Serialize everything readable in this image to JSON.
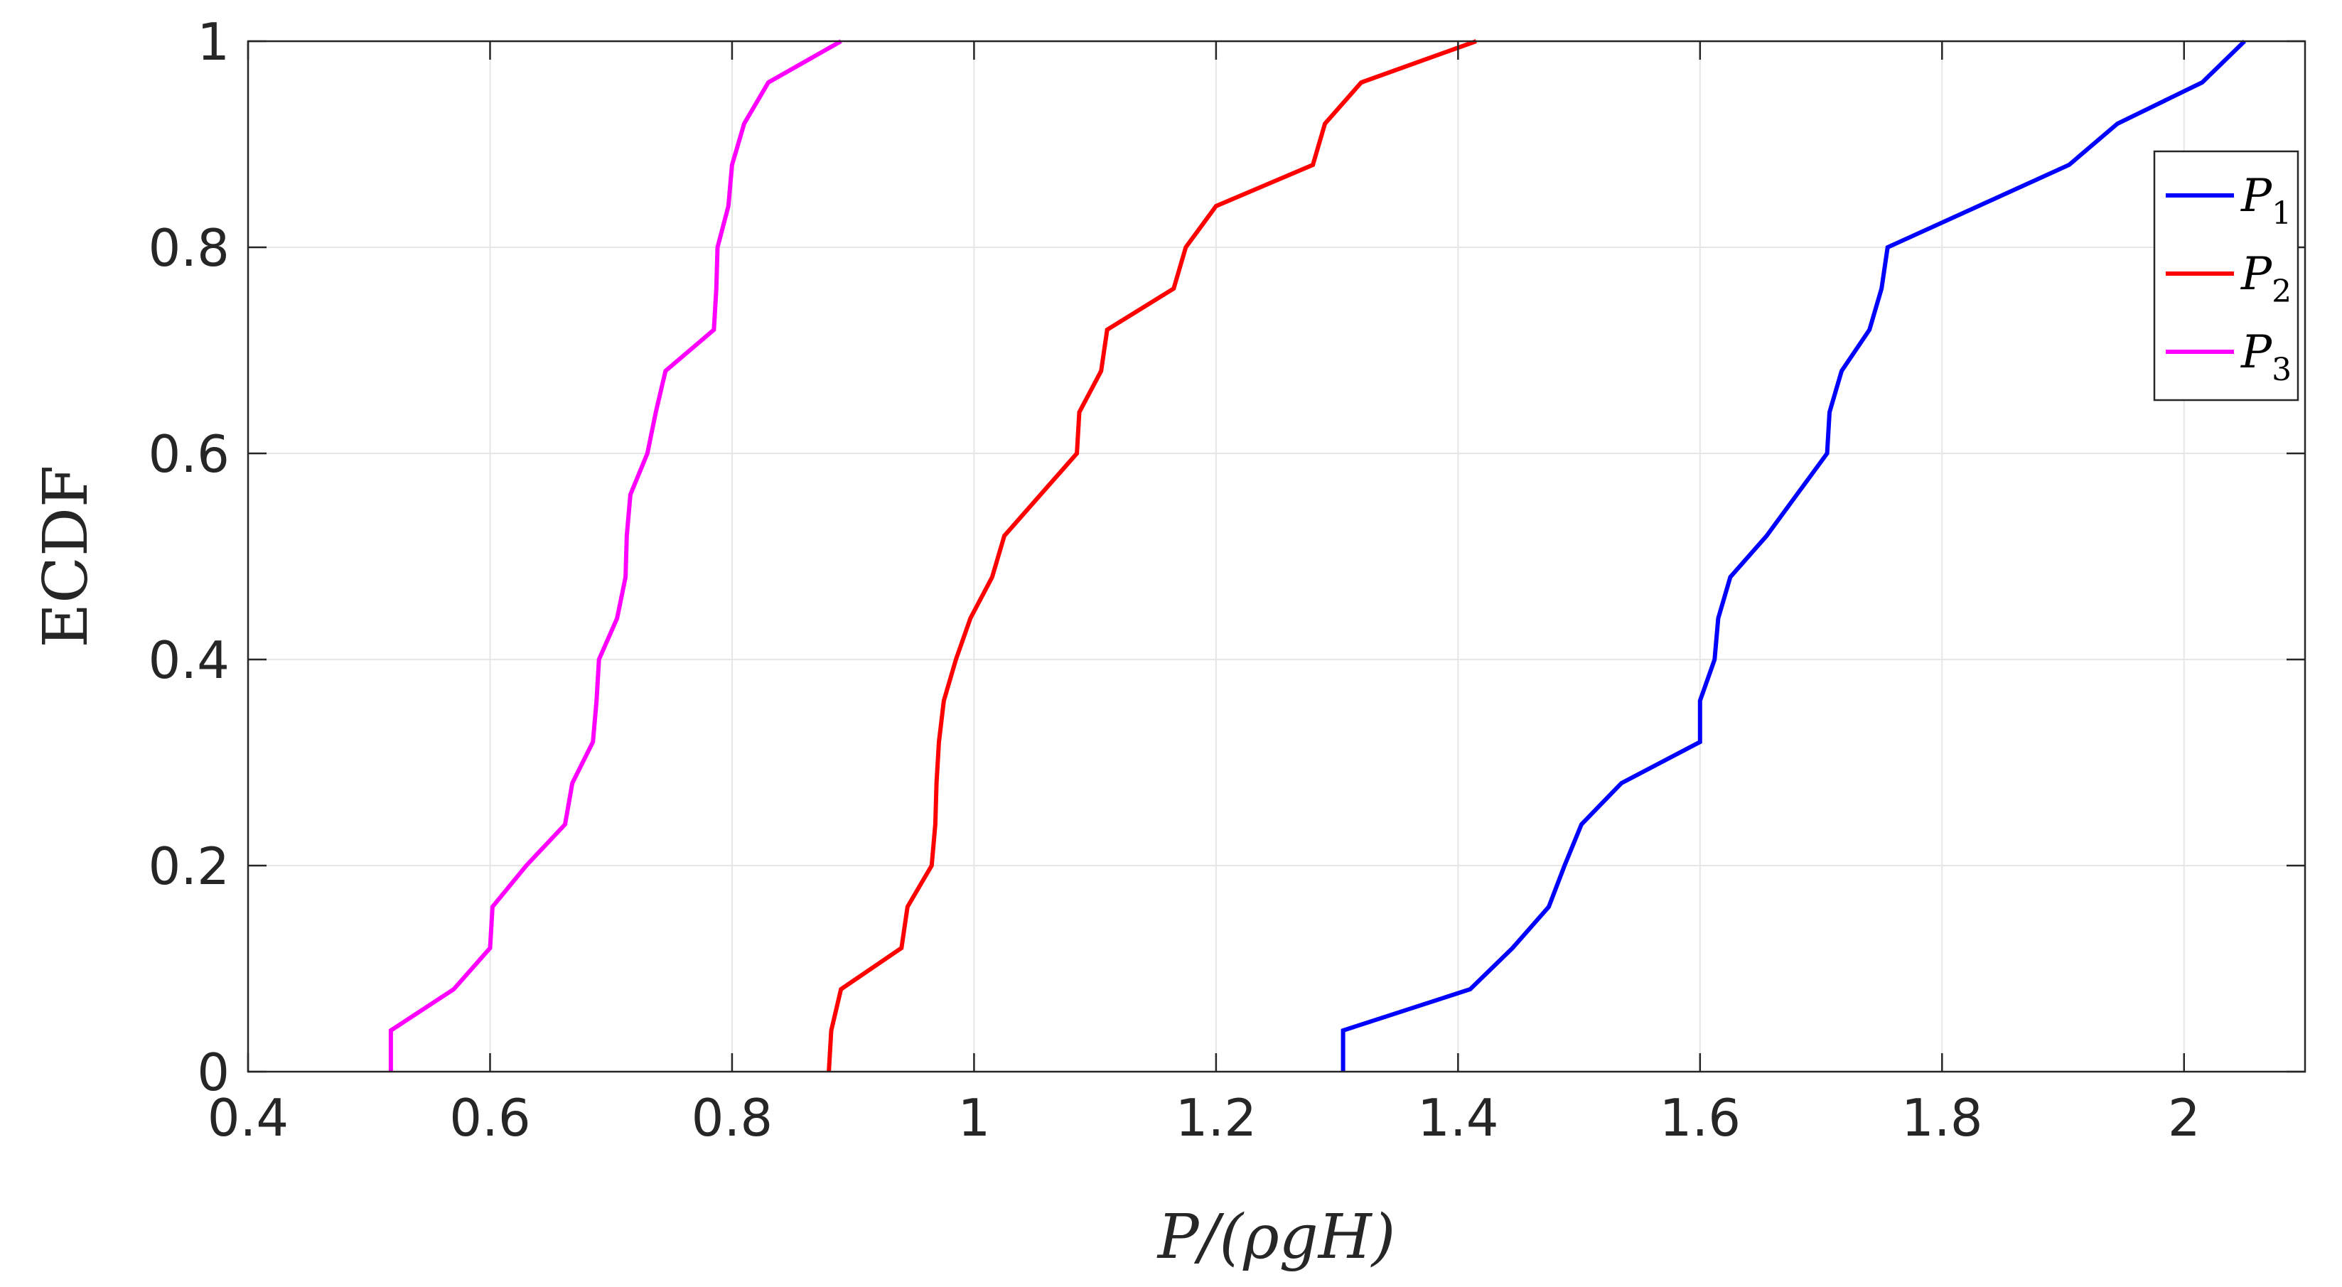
{
  "chart_data": {
    "type": "line",
    "xlabel": "P/(ρgH)",
    "ylabel": "ECDF",
    "xlim": [
      0.4,
      2.1
    ],
    "ylim": [
      0,
      1
    ],
    "x_ticks": [
      "0.4",
      "0.6",
      "0.8",
      "1",
      "1.2",
      "1.4",
      "1.6",
      "1.8",
      "2"
    ],
    "y_ticks": [
      "0",
      "0.2",
      "0.4",
      "0.6",
      "0.8",
      "1"
    ],
    "grid": true,
    "legend_position": "top-right",
    "series": [
      {
        "name": "P1",
        "name_base": "P",
        "name_sub": "1",
        "color": "#0000ff",
        "points": [
          [
            1.305,
            0.0
          ],
          [
            1.305,
            0.04
          ],
          [
            1.41,
            0.08
          ],
          [
            1.445,
            0.12
          ],
          [
            1.475,
            0.16
          ],
          [
            1.488,
            0.2
          ],
          [
            1.502,
            0.24
          ],
          [
            1.535,
            0.28
          ],
          [
            1.6,
            0.32
          ],
          [
            1.6,
            0.36
          ],
          [
            1.612,
            0.4
          ],
          [
            1.615,
            0.44
          ],
          [
            1.625,
            0.48
          ],
          [
            1.655,
            0.52
          ],
          [
            1.68,
            0.56
          ],
          [
            1.705,
            0.6
          ],
          [
            1.707,
            0.64
          ],
          [
            1.717,
            0.68
          ],
          [
            1.74,
            0.72
          ],
          [
            1.75,
            0.76
          ],
          [
            1.755,
            0.8
          ],
          [
            1.83,
            0.84
          ],
          [
            1.905,
            0.88
          ],
          [
            1.945,
            0.92
          ],
          [
            2.015,
            0.96
          ],
          [
            2.05,
            1.0
          ]
        ]
      },
      {
        "name": "P2",
        "name_base": "P",
        "name_sub": "2",
        "color": "#ff0000",
        "points": [
          [
            0.88,
            0.0
          ],
          [
            0.882,
            0.04
          ],
          [
            0.89,
            0.08
          ],
          [
            0.94,
            0.12
          ],
          [
            0.945,
            0.16
          ],
          [
            0.965,
            0.2
          ],
          [
            0.968,
            0.24
          ],
          [
            0.969,
            0.28
          ],
          [
            0.971,
            0.32
          ],
          [
            0.975,
            0.36
          ],
          [
            0.985,
            0.4
          ],
          [
            0.997,
            0.44
          ],
          [
            1.015,
            0.48
          ],
          [
            1.025,
            0.52
          ],
          [
            1.055,
            0.56
          ],
          [
            1.085,
            0.6
          ],
          [
            1.087,
            0.64
          ],
          [
            1.105,
            0.68
          ],
          [
            1.11,
            0.72
          ],
          [
            1.165,
            0.76
          ],
          [
            1.175,
            0.8
          ],
          [
            1.2,
            0.84
          ],
          [
            1.28,
            0.88
          ],
          [
            1.29,
            0.92
          ],
          [
            1.32,
            0.96
          ],
          [
            1.415,
            1.0
          ]
        ]
      },
      {
        "name": "P3",
        "name_base": "P",
        "name_sub": "3",
        "color": "#ff00ff",
        "points": [
          [
            0.518,
            0.0
          ],
          [
            0.518,
            0.04
          ],
          [
            0.57,
            0.08
          ],
          [
            0.6,
            0.12
          ],
          [
            0.602,
            0.16
          ],
          [
            0.63,
            0.2
          ],
          [
            0.662,
            0.24
          ],
          [
            0.668,
            0.28
          ],
          [
            0.685,
            0.32
          ],
          [
            0.688,
            0.36
          ],
          [
            0.69,
            0.4
          ],
          [
            0.705,
            0.44
          ],
          [
            0.712,
            0.48
          ],
          [
            0.713,
            0.52
          ],
          [
            0.716,
            0.56
          ],
          [
            0.73,
            0.6
          ],
          [
            0.737,
            0.64
          ],
          [
            0.745,
            0.68
          ],
          [
            0.785,
            0.72
          ],
          [
            0.787,
            0.76
          ],
          [
            0.788,
            0.8
          ],
          [
            0.797,
            0.84
          ],
          [
            0.8,
            0.88
          ],
          [
            0.81,
            0.92
          ],
          [
            0.83,
            0.96
          ],
          [
            0.89,
            1.0
          ]
        ]
      }
    ]
  }
}
